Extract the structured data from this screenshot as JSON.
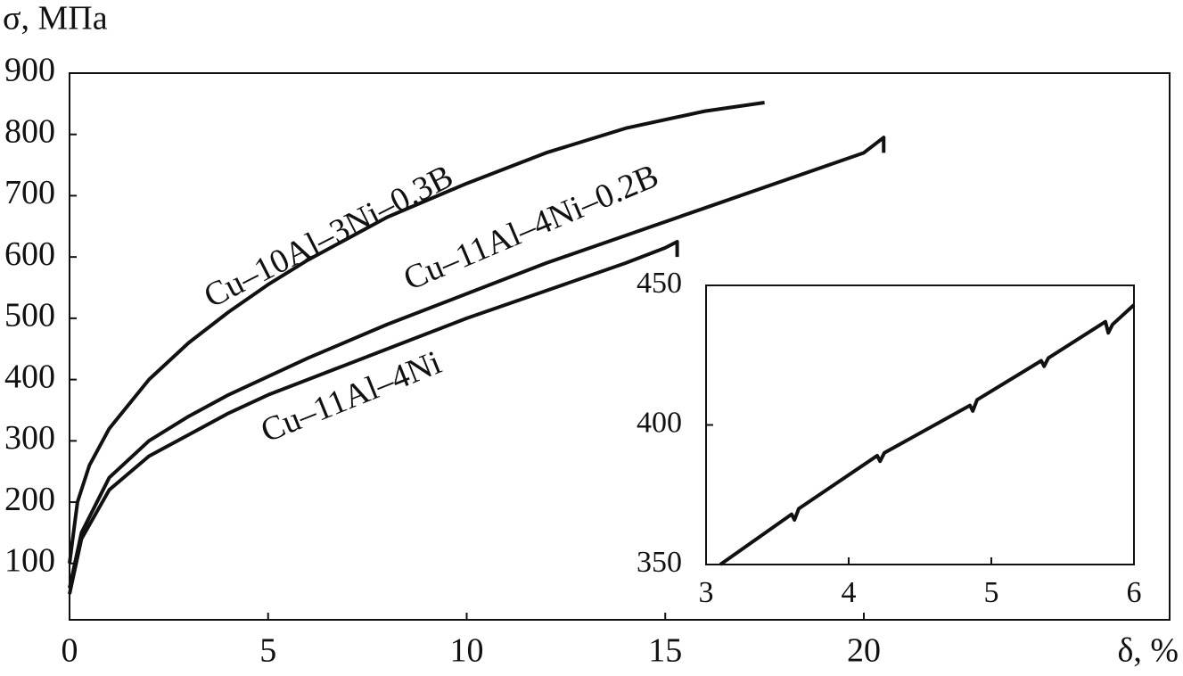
{
  "chart_data": [
    {
      "type": "line",
      "y_label": "σ, МПа",
      "x_label": "δ, %",
      "xlim": [
        0,
        27.7
      ],
      "ylim": [
        8,
        900
      ],
      "xticks": [
        0,
        5,
        10,
        15,
        20
      ],
      "yticks": [
        100,
        200,
        300,
        400,
        500,
        600,
        700,
        800,
        900
      ],
      "series": [
        {
          "name": "Cu–10Al–3Ni–0.3B",
          "color": "#111111",
          "x": [
            0,
            0.2,
            0.5,
            1,
            2,
            3,
            4,
            5,
            6,
            8,
            10,
            12,
            14,
            16,
            17.5
          ],
          "values": [
            100,
            200,
            260,
            320,
            400,
            460,
            510,
            555,
            595,
            665,
            720,
            770,
            810,
            838,
            852
          ]
        },
        {
          "name": "Cu–11Al–4Ni–0.2B",
          "color": "#111111",
          "x": [
            0,
            0.3,
            1,
            2,
            3,
            4,
            5,
            6,
            8,
            10,
            12,
            14,
            16,
            18,
            20,
            20.5,
            20.5
          ],
          "values": [
            60,
            150,
            240,
            300,
            340,
            375,
            405,
            435,
            490,
            540,
            590,
            635,
            680,
            725,
            770,
            795,
            770
          ]
        },
        {
          "name": "Cu–11Al–4Ni",
          "color": "#111111",
          "x": [
            0,
            0.3,
            1,
            2,
            3,
            4,
            5,
            6,
            8,
            10,
            12,
            14,
            15,
            15.3,
            15.3
          ],
          "values": [
            50,
            140,
            220,
            275,
            310,
            345,
            375,
            400,
            450,
            500,
            545,
            590,
            615,
            625,
            600
          ]
        }
      ]
    },
    {
      "type": "line",
      "xlim": [
        3,
        6
      ],
      "ylim": [
        350,
        450
      ],
      "xticks": [
        3,
        4,
        5,
        6
      ],
      "yticks": [
        350,
        400,
        450
      ],
      "series": [
        {
          "color": "#111111",
          "x": [
            3.1,
            3.6,
            3.62,
            3.65,
            4.2,
            4.22,
            4.25,
            4.85,
            4.87,
            4.9,
            5.35,
            5.37,
            5.4,
            5.8,
            5.82,
            5.85,
            6
          ],
          "values": [
            350,
            368,
            366,
            370,
            389,
            387,
            390,
            407,
            405,
            409,
            423,
            421,
            424,
            437,
            433,
            436,
            443
          ]
        }
      ]
    }
  ]
}
